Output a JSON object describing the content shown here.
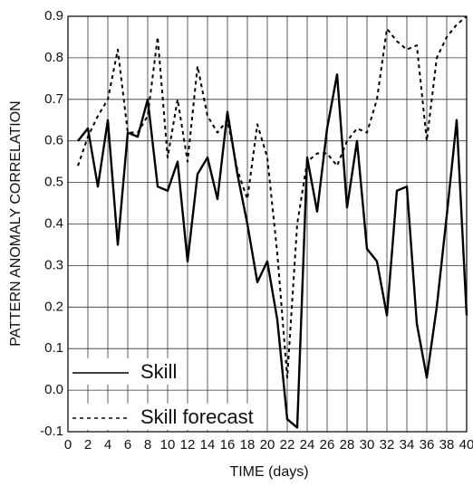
{
  "chart_data": {
    "type": "line",
    "xlabel": "TIME (days)",
    "ylabel": "PATTERN ANOMALY CORRELATION",
    "x": [
      1,
      2,
      3,
      4,
      5,
      6,
      7,
      8,
      9,
      10,
      11,
      12,
      13,
      14,
      15,
      16,
      17,
      18,
      19,
      20,
      21,
      22,
      23,
      24,
      25,
      26,
      27,
      28,
      29,
      30,
      31,
      32,
      33,
      34,
      35,
      36,
      37,
      38,
      39,
      40
    ],
    "series": [
      {
        "name": "Skill",
        "color": "#000000",
        "style": "solid",
        "values": [
          0.6,
          0.63,
          0.49,
          0.65,
          0.35,
          0.62,
          0.61,
          0.7,
          0.49,
          0.48,
          0.55,
          0.31,
          0.52,
          0.56,
          0.46,
          0.67,
          0.52,
          0.4,
          0.26,
          0.31,
          0.17,
          -0.07,
          -0.09,
          0.56,
          0.43,
          0.63,
          0.76,
          0.44,
          0.6,
          0.34,
          0.31,
          0.18,
          0.48,
          0.49,
          0.16,
          0.03,
          0.2,
          0.42,
          0.65,
          0.18
        ]
      },
      {
        "name": "Skill forecast",
        "color": "#000000",
        "style": "dashed",
        "values": [
          0.54,
          0.61,
          0.66,
          0.7,
          0.82,
          0.62,
          0.62,
          0.66,
          0.85,
          0.56,
          0.7,
          0.55,
          0.78,
          0.66,
          0.62,
          0.65,
          0.53,
          0.46,
          0.64,
          0.56,
          0.33,
          0.03,
          0.4,
          0.55,
          0.57,
          0.57,
          0.54,
          0.6,
          0.63,
          0.62,
          0.7,
          0.87,
          0.84,
          0.82,
          0.83,
          0.6,
          0.8,
          0.85,
          0.88,
          0.9
        ]
      }
    ],
    "xlim": [
      0,
      40
    ],
    "xticks": [
      0,
      2,
      4,
      6,
      8,
      10,
      12,
      14,
      16,
      18,
      20,
      22,
      24,
      26,
      28,
      30,
      32,
      34,
      36,
      38,
      40
    ],
    "ylim": [
      -0.1,
      0.9
    ],
    "yticks": [
      -0.1,
      {
        "value": 0,
        "label": "0.0"
      },
      0.1,
      0.2,
      0.3,
      0.4,
      0.5,
      0.6,
      0.7,
      0.8,
      0.9
    ],
    "grid": true,
    "legend": "lower left"
  }
}
